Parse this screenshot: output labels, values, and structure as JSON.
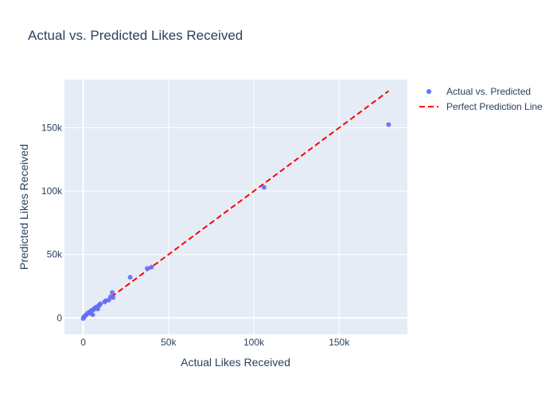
{
  "chart_data": {
    "type": "scatter",
    "title": "Actual vs. Predicted Likes Received",
    "xlabel": "Actual Likes Received",
    "ylabel": "Predicted Likes Received",
    "xlim": [
      -11000,
      190000
    ],
    "ylim": [
      -13000,
      188000
    ],
    "x_ticks": [
      0,
      50000,
      100000,
      150000
    ],
    "x_tick_labels": [
      "0",
      "50k",
      "100k",
      "150k"
    ],
    "y_ticks": [
      0,
      50000,
      100000,
      150000
    ],
    "y_tick_labels": [
      "0",
      "50k",
      "100k",
      "150k"
    ],
    "grid": true,
    "legend_position": "top-right",
    "plot_bgcolor": "#e5ecf6",
    "series": [
      {
        "name": "Actual vs. Predicted",
        "mode": "markers",
        "color": "#636efa",
        "x": [
          0,
          300,
          700,
          1200,
          1800,
          2500,
          3200,
          4000,
          4500,
          5000,
          5600,
          6000,
          6500,
          7000,
          7800,
          8500,
          9000,
          9500,
          10000,
          12500,
          13200,
          15000,
          16000,
          17000,
          17500,
          27500,
          37500,
          40000,
          106000,
          179000
        ],
        "y": [
          -500,
          500,
          1000,
          1800,
          2500,
          3500,
          4000,
          5000,
          3500,
          6000,
          2500,
          6500,
          7000,
          8000,
          8500,
          7000,
          9500,
          10000,
          11000,
          12500,
          13500,
          14000,
          16500,
          20000,
          16000,
          32000,
          39000,
          40000,
          103000,
          152500
        ]
      },
      {
        "name": "Perfect Prediction Line",
        "mode": "lines",
        "dash": "dash",
        "color": "#ff0000",
        "x": [
          0,
          179000
        ],
        "y": [
          0,
          179000
        ]
      }
    ]
  }
}
